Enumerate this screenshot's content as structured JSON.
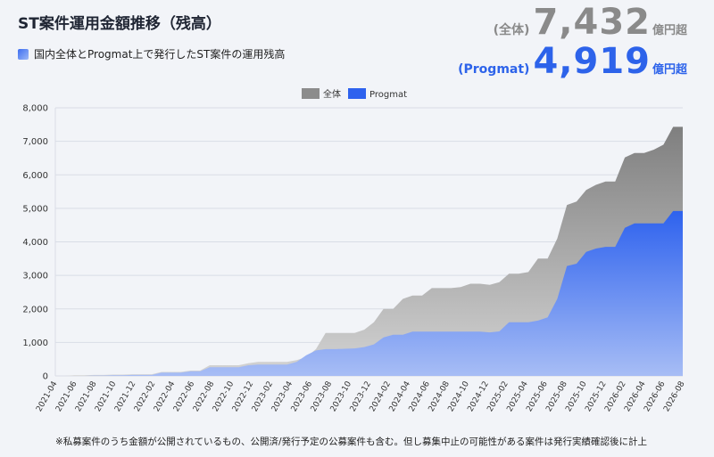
{
  "header": {
    "title": "ST案件運用金額推移（残高）",
    "subtitle": "国内全体とProgmat上で発行したST案件の運用残高",
    "total_label": "(全体)",
    "total_value": "7,432",
    "total_unit": "億円超",
    "progmat_label": "(Progmat)",
    "progmat_value": "4,919",
    "progmat_unit": "億円超",
    "footnote": "※私募案件のうち金額が公開されているもの、公開済/発行予定の公募案件も含む。但し募集中止の可能性がある案件は発行実績確認後に計上"
  },
  "colors": {
    "total": "#8c8c8c",
    "progmat": "#2e62ee",
    "progmat_light": "#a7bdf5",
    "grid": "#d9dde6"
  },
  "chart_data": {
    "type": "area",
    "legend_position": "top",
    "grid": true,
    "ylim": [
      0,
      8000
    ],
    "yticks": [
      "0",
      "1,000",
      "2,000",
      "3,000",
      "4,000",
      "5,000",
      "6,000",
      "7,000",
      "8,000"
    ],
    "xticks": [
      "2021-04",
      "2021-06",
      "2021-08",
      "2021-10",
      "2021-12",
      "2022-02",
      "2022-04",
      "2022-06",
      "2022-08",
      "2022-10",
      "2022-12",
      "2023-02",
      "2023-04",
      "2023-06",
      "2023-08",
      "2023-10",
      "2023-12",
      "2024-02",
      "2024-04",
      "2024-06",
      "2024-08",
      "2024-10",
      "2024-12",
      "2025-02",
      "2025-04",
      "2025-06",
      "2025-08",
      "2025-10",
      "2025-12",
      "2026-02",
      "2026-04",
      "2026-06",
      "2026-08"
    ],
    "series": [
      {
        "name": "全体",
        "values": [
          0,
          0,
          20,
          20,
          30,
          30,
          40,
          40,
          50,
          50,
          50,
          120,
          120,
          120,
          160,
          160,
          320,
          320,
          320,
          320,
          380,
          420,
          420,
          420,
          420,
          470,
          560,
          800,
          1280,
          1280,
          1280,
          1280,
          1380,
          1600,
          2000,
          2000,
          2300,
          2400,
          2400,
          2620,
          2620,
          2620,
          2650,
          2750,
          2750,
          2720,
          2800,
          3050,
          3050,
          3100,
          3500,
          3500,
          4100,
          5100,
          5200,
          5550,
          5700,
          5800,
          5800,
          6520,
          6650,
          6650,
          6750,
          6900,
          7432,
          7432
        ]
      },
      {
        "name": "Progmat",
        "values": [
          0,
          0,
          0,
          0,
          10,
          10,
          20,
          20,
          30,
          30,
          30,
          100,
          100,
          100,
          140,
          140,
          260,
          260,
          260,
          260,
          320,
          340,
          340,
          340,
          340,
          420,
          620,
          760,
          800,
          800,
          810,
          820,
          860,
          940,
          1150,
          1230,
          1230,
          1320,
          1320,
          1320,
          1320,
          1320,
          1320,
          1320,
          1320,
          1300,
          1330,
          1600,
          1600,
          1600,
          1650,
          1750,
          2300,
          3280,
          3350,
          3700,
          3800,
          3850,
          3850,
          4420,
          4550,
          4550,
          4550,
          4550,
          4919,
          4919
        ]
      }
    ]
  }
}
